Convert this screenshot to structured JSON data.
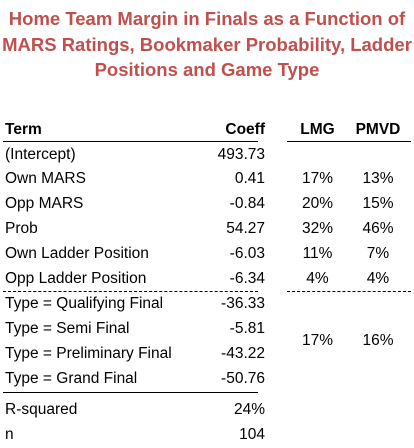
{
  "title_lines": [
    "Home Team Margin in Finals as a Function of",
    "MARS Ratings, Bookmaker Probability, Ladder",
    "Positions and Game Type"
  ],
  "headers": {
    "term": "Term",
    "coeff": "Coeff",
    "lmg": "LMG",
    "pmvd": "PMVD"
  },
  "rows": [
    {
      "term": "(Intercept)",
      "coeff": "493.73",
      "lmg": "",
      "pmvd": ""
    },
    {
      "term": "Own MARS",
      "coeff": "0.41",
      "lmg": "17%",
      "pmvd": "13%"
    },
    {
      "term": "Opp MARS",
      "coeff": "-0.84",
      "lmg": "20%",
      "pmvd": "15%"
    },
    {
      "term": "Prob",
      "coeff": "54.27",
      "lmg": "32%",
      "pmvd": "46%"
    },
    {
      "term": "Own Ladder Position",
      "coeff": "-6.03",
      "lmg": "11%",
      "pmvd": "7%"
    },
    {
      "term": "Opp Ladder Position",
      "coeff": "-6.34",
      "lmg": "4%",
      "pmvd": "4%"
    }
  ],
  "type_rows": [
    {
      "term": "Type = Qualifying Final",
      "coeff": "-36.33"
    },
    {
      "term": "Type = Semi Final",
      "coeff": "-5.81"
    },
    {
      "term": "Type = Preliminary Final",
      "coeff": "-43.22"
    },
    {
      "term": "Type = Grand Final",
      "coeff": "-50.76"
    }
  ],
  "type_group": {
    "lmg": "17%",
    "pmvd": "16%"
  },
  "fit": [
    {
      "term": "R-squared",
      "coeff": "24%"
    },
    {
      "term": "n",
      "coeff": "104"
    }
  ]
}
